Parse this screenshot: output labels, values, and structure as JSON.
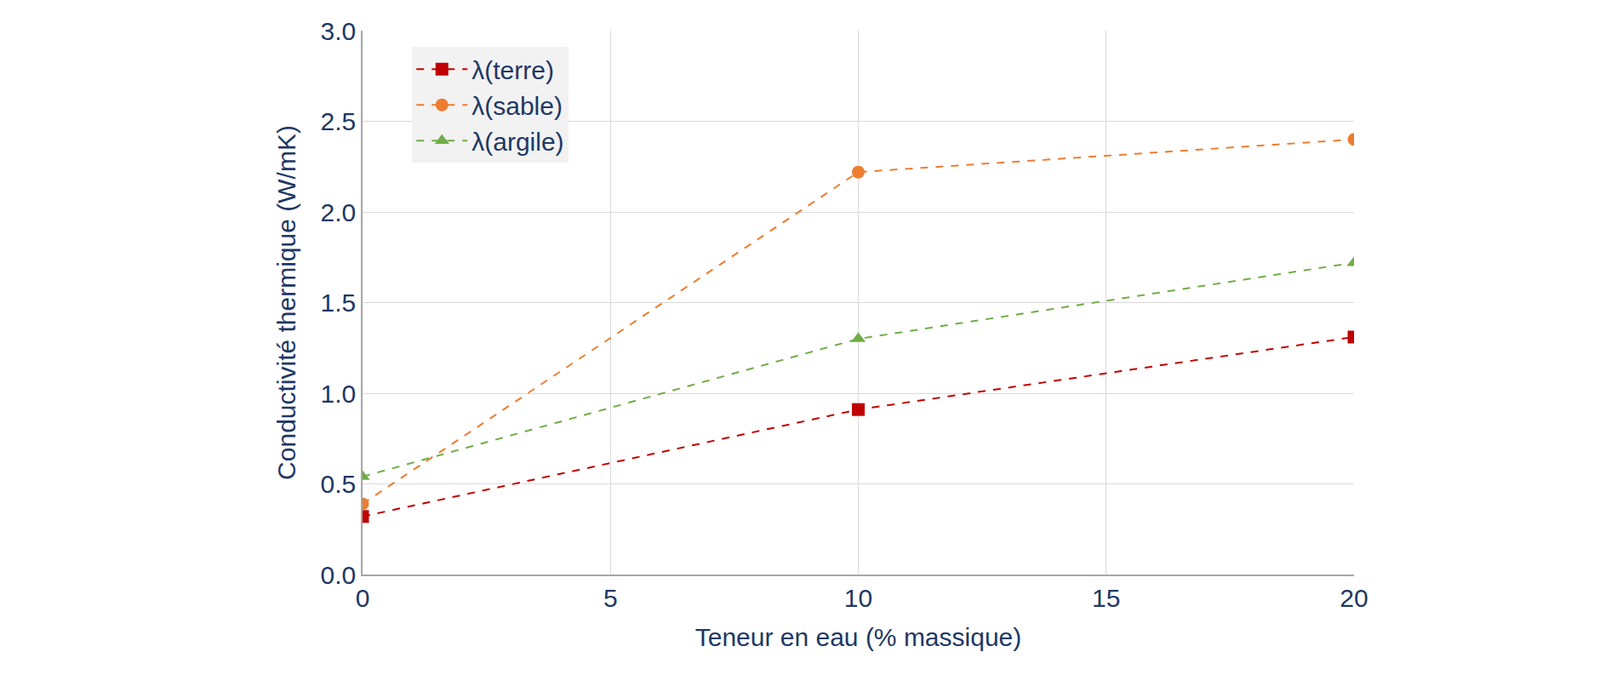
{
  "chart_data": {
    "type": "line",
    "x_label": "Teneur en eau (% massique)",
    "y_label": "Conductivité thermique (W/mK)",
    "x": [
      0,
      10,
      20
    ],
    "series": [
      {
        "name": "λ(terre)",
        "color": "#C00000",
        "marker": "square",
        "line_style": "dash",
        "values": [
          0.32,
          0.91,
          1.31
        ]
      },
      {
        "name": "λ(sable)",
        "color": "#ED7D31",
        "marker": "circle",
        "line_style": "dash",
        "values": [
          0.39,
          2.22,
          2.4
        ]
      },
      {
        "name": "λ(argile)",
        "color": "#70AD47",
        "marker": "triangle-up",
        "line_style": "dash",
        "values": [
          0.54,
          1.3,
          1.72
        ]
      }
    ],
    "xlim": [
      0,
      20
    ],
    "xticks": [
      0,
      5,
      10,
      15,
      20
    ],
    "ylim": [
      0,
      3
    ],
    "yticks": [
      {
        "value": 0,
        "label": "0.0"
      },
      0.5,
      {
        "value": 1,
        "label": "1.0"
      },
      1.5,
      {
        "value": 2,
        "label": "2.0"
      },
      2.5,
      {
        "value": 3,
        "label": "3.0"
      }
    ],
    "grid": true,
    "legend": "upper left"
  }
}
